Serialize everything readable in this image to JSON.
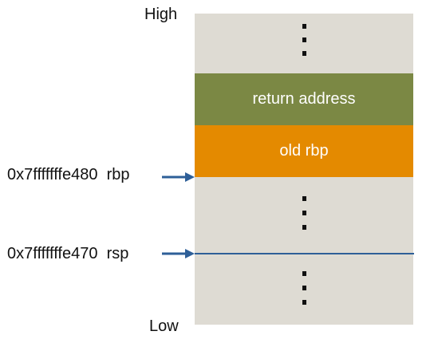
{
  "labels": {
    "high": "High",
    "low": "Low"
  },
  "blocks": {
    "return_address": "return address",
    "old_rbp": "old rbp"
  },
  "pointers": {
    "rbp": {
      "address": "0x7fffffffe480",
      "register": "rbp"
    },
    "rsp": {
      "address": "0x7fffffffe470",
      "register": "rsp"
    }
  },
  "colors": {
    "stack_bg": "#dedbd3",
    "return_address": "#7b8844",
    "old_rbp": "#e48a00",
    "arrow": "#2e5f98"
  }
}
